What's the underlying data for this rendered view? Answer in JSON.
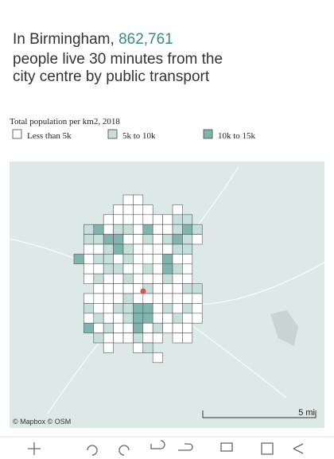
{
  "header": {
    "title_prefix": "In Birmingham,",
    "title_value": "862,761",
    "title_line2": "people live 30 minutes from the",
    "title_line3": "city centre by public transport"
  },
  "legend": {
    "title": "Total population per km2, 2018",
    "items": [
      {
        "label": "Less than 5k",
        "color": "#ffffff"
      },
      {
        "label": "5k to 10k",
        "color": "#c6dfdb"
      },
      {
        "label": "10k to 15k",
        "color": "#80b5ae"
      }
    ]
  },
  "map": {
    "attribution": [
      "© Mapbox",
      "© OSM"
    ],
    "scale_label": "5 mi"
  }
}
